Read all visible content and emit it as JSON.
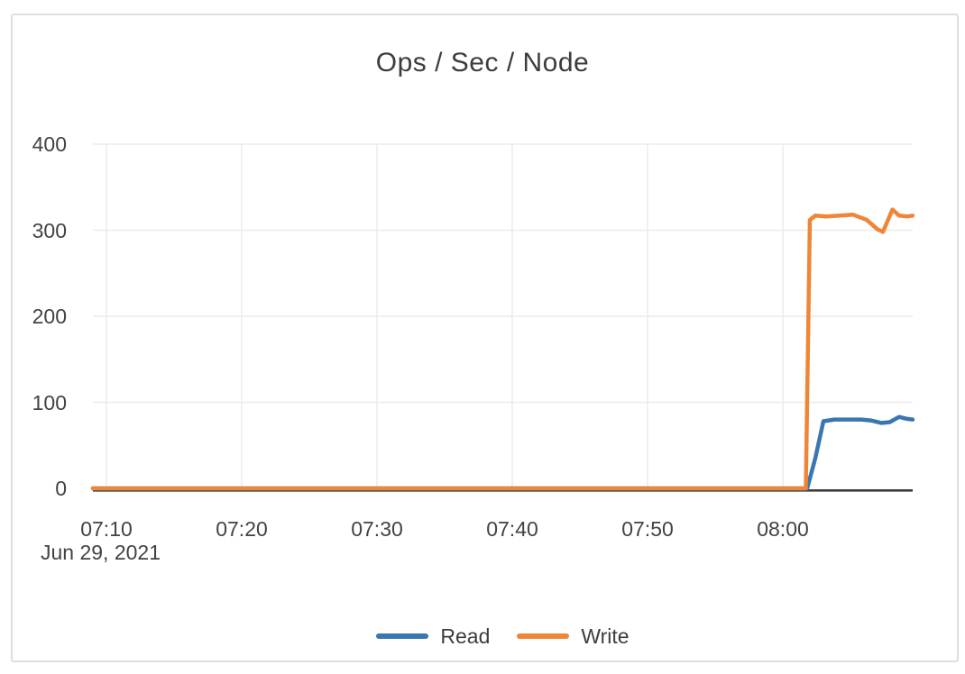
{
  "chart_data": {
    "type": "line",
    "title": "Ops / Sec / Node",
    "date_label": "Jun 29, 2021",
    "x_encoding": "minutes after 07:00",
    "x_range": [
      9,
      69.6
    ],
    "ylim": [
      0,
      400
    ],
    "grid": true,
    "legend_position": "bottom",
    "x_ticks": [
      {
        "value": 10,
        "label": "07:10"
      },
      {
        "value": 20,
        "label": "07:20"
      },
      {
        "value": 30,
        "label": "07:30"
      },
      {
        "value": 40,
        "label": "07:40"
      },
      {
        "value": 50,
        "label": "07:50"
      },
      {
        "value": 60,
        "label": "08:00"
      }
    ],
    "y_ticks": [
      {
        "value": 0,
        "label": "0"
      },
      {
        "value": 100,
        "label": "100"
      },
      {
        "value": 200,
        "label": "200"
      },
      {
        "value": 300,
        "label": "300"
      },
      {
        "value": 400,
        "label": "400"
      }
    ],
    "colors": {
      "read": "#3a76b0",
      "write": "#ef8637",
      "gridline": "#ebebeb",
      "axis_line": "#3d3d3d",
      "text": "#434343"
    },
    "series": [
      {
        "name": "Read",
        "color": "#3a76b0",
        "points": [
          [
            9,
            0
          ],
          [
            15,
            0
          ],
          [
            20,
            0
          ],
          [
            25,
            0
          ],
          [
            30,
            0
          ],
          [
            35,
            0
          ],
          [
            40,
            0
          ],
          [
            45,
            0
          ],
          [
            50,
            0
          ],
          [
            55,
            0
          ],
          [
            60,
            0
          ],
          [
            61.8,
            0
          ],
          [
            62.4,
            35
          ],
          [
            63.0,
            78
          ],
          [
            63.8,
            80
          ],
          [
            64.8,
            80
          ],
          [
            65.8,
            80
          ],
          [
            66.5,
            79
          ],
          [
            67.3,
            76
          ],
          [
            67.9,
            77
          ],
          [
            68.6,
            83
          ],
          [
            69.1,
            81
          ],
          [
            69.6,
            80
          ]
        ]
      },
      {
        "name": "Write",
        "color": "#ef8637",
        "points": [
          [
            9,
            0
          ],
          [
            15,
            0
          ],
          [
            20,
            0
          ],
          [
            25,
            0
          ],
          [
            30,
            0
          ],
          [
            35,
            0
          ],
          [
            40,
            0
          ],
          [
            45,
            0
          ],
          [
            50,
            0
          ],
          [
            55,
            0
          ],
          [
            60,
            0
          ],
          [
            61.7,
            0
          ],
          [
            62.0,
            312
          ],
          [
            62.4,
            317
          ],
          [
            63.2,
            316
          ],
          [
            64.2,
            317
          ],
          [
            65.2,
            318
          ],
          [
            66.2,
            312
          ],
          [
            67.0,
            301
          ],
          [
            67.4,
            298
          ],
          [
            68.1,
            324
          ],
          [
            68.6,
            317
          ],
          [
            69.2,
            316
          ],
          [
            69.6,
            317
          ]
        ]
      }
    ]
  }
}
